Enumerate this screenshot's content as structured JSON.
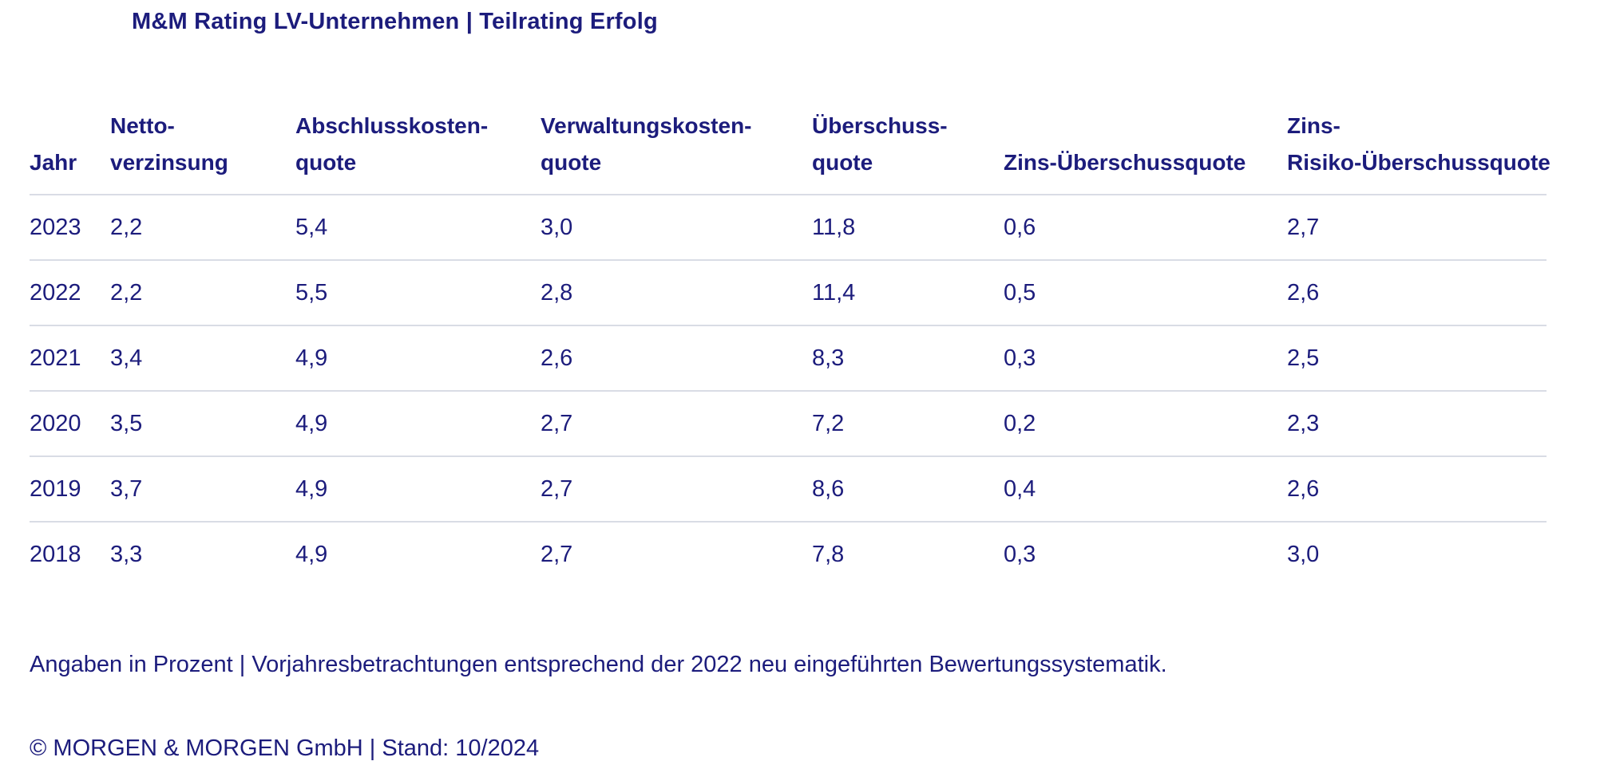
{
  "title": "M&M Rating LV-Unternehmen | Teilrating Erfolg",
  "colors": {
    "text_navy": "#1c1c7c",
    "divider": "#d9dce5",
    "background": "#ffffff"
  },
  "table": {
    "columns": [
      {
        "id": "jahr",
        "lines": [
          "Jahr"
        ],
        "label": "Jahr"
      },
      {
        "id": "nettoverzinsung",
        "lines": [
          "Netto-",
          "verzinsung"
        ],
        "label": "Netto-verzinsung"
      },
      {
        "id": "abschlusskostenquote",
        "lines": [
          "Abschlusskosten-",
          "quote"
        ],
        "label": "Abschlusskosten-quote"
      },
      {
        "id": "verwaltungskostenquote",
        "lines": [
          "Verwaltungskosten-",
          "quote"
        ],
        "label": "Verwaltungskosten-quote"
      },
      {
        "id": "ueberschussquote",
        "lines": [
          "Überschuss-",
          "quote"
        ],
        "label": "Überschuss-quote"
      },
      {
        "id": "zins-ueberschussquote",
        "lines": [
          "Zins-Überschussquote"
        ],
        "label": "Zins-Überschussquote"
      },
      {
        "id": "zins-risiko-ueberschussquote",
        "lines": [
          "Zins-",
          "Risiko-Überschussquote"
        ],
        "label": "Zins-Risiko-Überschussquote"
      }
    ],
    "rows": [
      {
        "year": "2023",
        "values": [
          "2,2",
          "5,4",
          "3,0",
          "11,8",
          "0,6",
          "2,7"
        ]
      },
      {
        "year": "2022",
        "values": [
          "2,2",
          "5,5",
          "2,8",
          "11,4",
          "0,5",
          "2,6"
        ]
      },
      {
        "year": "2021",
        "values": [
          "3,4",
          "4,9",
          "2,6",
          "8,3",
          "0,3",
          "2,5"
        ]
      },
      {
        "year": "2020",
        "values": [
          "3,5",
          "4,9",
          "2,7",
          "7,2",
          "0,2",
          "2,3"
        ]
      },
      {
        "year": "2019",
        "values": [
          "3,7",
          "4,9",
          "2,7",
          "8,6",
          "0,4",
          "2,6"
        ]
      },
      {
        "year": "2018",
        "values": [
          "3,3",
          "4,9",
          "2,7",
          "7,8",
          "0,3",
          "3,0"
        ]
      }
    ]
  },
  "footnote": "Angaben in Prozent | Vorjahresbetrachtungen entsprechend der 2022 neu eingeführten Bewertungssystematik.",
  "copyright": "© MORGEN & MORGEN GmbH | Stand: 10/2024"
}
